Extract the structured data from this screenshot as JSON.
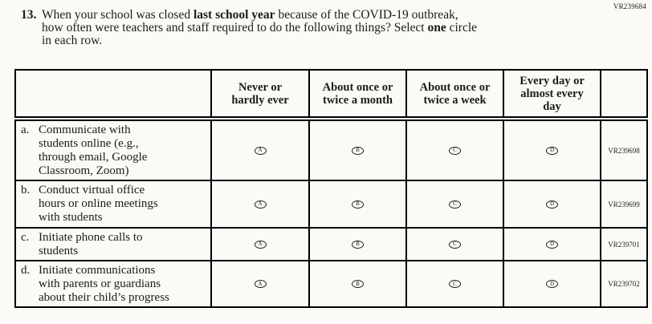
{
  "page": {
    "background": "#fbfaf6",
    "text_color": "#1b1b1b",
    "border_color": "#000000",
    "top_right_code": "VR239684"
  },
  "question": {
    "number": "13.",
    "lines": [
      [
        {
          "text": "When your school was closed ",
          "bold": false
        },
        {
          "text": "last school year",
          "bold": true
        },
        {
          "text": " because of the COVID-19 outbreak,",
          "bold": false
        }
      ],
      [
        {
          "text": "how often were teachers and staff required to do the following things? Select ",
          "bold": false
        },
        {
          "text": "one",
          "bold": true
        },
        {
          "text": " circle",
          "bold": false
        }
      ],
      [
        {
          "text": "in each row.",
          "bold": false
        }
      ]
    ]
  },
  "table": {
    "header": {
      "item_column_label": "",
      "columns": [
        "Never or\nhardly ever",
        "About once or\ntwice a month",
        "About once or\ntwice a week",
        "Every day or\nalmost every\nday"
      ],
      "code_column_label": ""
    },
    "rows": [
      {
        "letter": "a.",
        "label": "Communicate with\nstudents online (e.g.,\nthrough email, Google\nClassroom, Zoom)",
        "options": [
          "A",
          "B",
          "C",
          "D"
        ],
        "vr_code": "VR239698"
      },
      {
        "letter": "b.",
        "label": "Conduct virtual office\nhours or online meetings\nwith students",
        "options": [
          "A",
          "B",
          "C",
          "D"
        ],
        "vr_code": "VR239699"
      },
      {
        "letter": "c.",
        "label": "Initiate phone calls to\nstudents",
        "options": [
          "A",
          "B",
          "C",
          "D"
        ],
        "vr_code": "VR239701"
      },
      {
        "letter": "d.",
        "label": "Initiate communications\nwith parents or guardians\nabout their child’s progress",
        "options": [
          "A",
          "B",
          "C",
          "D"
        ],
        "vr_code": "VR239702"
      }
    ]
  }
}
